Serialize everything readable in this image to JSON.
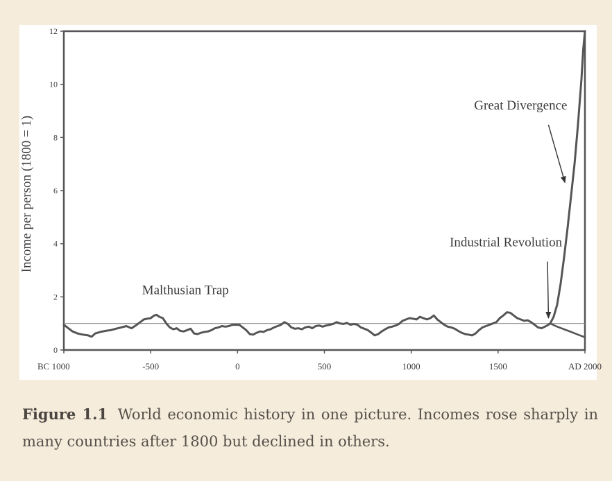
{
  "chart_data": {
    "type": "line",
    "title": "",
    "xlabel": "",
    "ylabel": "Income per person (1800 = 1)",
    "xlim": [
      -1000,
      2000
    ],
    "ylim": [
      0,
      12
    ],
    "x_ticks": [
      -1000,
      -500,
      0,
      500,
      1000,
      1500,
      2000
    ],
    "x_tick_labels": [
      "BC 1000",
      "-500",
      "0",
      "500",
      "1000",
      "1500",
      "AD 2000"
    ],
    "y_ticks": [
      0,
      2,
      4,
      6,
      8,
      10,
      12
    ],
    "y_tick_labels": [
      "0",
      "2",
      "4",
      "6",
      "8",
      "10",
      "12"
    ],
    "grid": false,
    "reference_line": {
      "y": 1
    },
    "series": [
      {
        "values_xy": [
          [
            -1000,
            0.95
          ],
          [
            -980,
            0.85
          ],
          [
            -950,
            0.7
          ],
          [
            -920,
            0.62
          ],
          [
            -890,
            0.58
          ],
          [
            -860,
            0.55
          ],
          [
            -840,
            0.5
          ],
          [
            -820,
            0.62
          ],
          [
            -790,
            0.68
          ],
          [
            -760,
            0.72
          ],
          [
            -730,
            0.75
          ],
          [
            -700,
            0.8
          ],
          [
            -670,
            0.85
          ],
          [
            -640,
            0.9
          ],
          [
            -610,
            0.82
          ],
          [
            -580,
            0.95
          ],
          [
            -560,
            1.05
          ],
          [
            -540,
            1.15
          ],
          [
            -520,
            1.18
          ],
          [
            -500,
            1.2
          ],
          [
            -480,
            1.3
          ],
          [
            -465,
            1.32
          ],
          [
            -450,
            1.25
          ],
          [
            -430,
            1.2
          ],
          [
            -410,
            1.0
          ],
          [
            -390,
            0.85
          ],
          [
            -370,
            0.78
          ],
          [
            -350,
            0.82
          ],
          [
            -330,
            0.72
          ],
          [
            -310,
            0.7
          ],
          [
            -290,
            0.75
          ],
          [
            -270,
            0.8
          ],
          [
            -250,
            0.62
          ],
          [
            -230,
            0.6
          ],
          [
            -210,
            0.65
          ],
          [
            -190,
            0.68
          ],
          [
            -170,
            0.7
          ],
          [
            -150,
            0.75
          ],
          [
            -130,
            0.82
          ],
          [
            -110,
            0.85
          ],
          [
            -90,
            0.9
          ],
          [
            -70,
            0.88
          ],
          [
            -50,
            0.9
          ],
          [
            -30,
            0.95
          ],
          [
            -10,
            0.95
          ],
          [
            10,
            0.95
          ],
          [
            30,
            0.85
          ],
          [
            50,
            0.75
          ],
          [
            70,
            0.6
          ],
          [
            90,
            0.58
          ],
          [
            110,
            0.65
          ],
          [
            130,
            0.7
          ],
          [
            150,
            0.68
          ],
          [
            170,
            0.75
          ],
          [
            190,
            0.78
          ],
          [
            210,
            0.85
          ],
          [
            230,
            0.9
          ],
          [
            250,
            0.95
          ],
          [
            270,
            1.05
          ],
          [
            290,
            0.98
          ],
          [
            310,
            0.85
          ],
          [
            330,
            0.8
          ],
          [
            350,
            0.82
          ],
          [
            370,
            0.78
          ],
          [
            390,
            0.85
          ],
          [
            410,
            0.88
          ],
          [
            430,
            0.82
          ],
          [
            450,
            0.9
          ],
          [
            470,
            0.92
          ],
          [
            490,
            0.88
          ],
          [
            510,
            0.92
          ],
          [
            530,
            0.95
          ],
          [
            550,
            0.98
          ],
          [
            570,
            1.05
          ],
          [
            590,
            1.0
          ],
          [
            610,
            0.98
          ],
          [
            630,
            1.02
          ],
          [
            650,
            0.95
          ],
          [
            670,
            0.98
          ],
          [
            690,
            0.95
          ],
          [
            710,
            0.85
          ],
          [
            730,
            0.8
          ],
          [
            750,
            0.75
          ],
          [
            770,
            0.65
          ],
          [
            790,
            0.55
          ],
          [
            810,
            0.6
          ],
          [
            830,
            0.7
          ],
          [
            850,
            0.78
          ],
          [
            870,
            0.85
          ],
          [
            890,
            0.88
          ],
          [
            910,
            0.92
          ],
          [
            930,
            0.98
          ],
          [
            950,
            1.1
          ],
          [
            970,
            1.15
          ],
          [
            990,
            1.2
          ],
          [
            1010,
            1.18
          ],
          [
            1030,
            1.15
          ],
          [
            1050,
            1.25
          ],
          [
            1070,
            1.2
          ],
          [
            1090,
            1.15
          ],
          [
            1110,
            1.2
          ],
          [
            1130,
            1.3
          ],
          [
            1150,
            1.15
          ],
          [
            1170,
            1.05
          ],
          [
            1190,
            0.95
          ],
          [
            1210,
            0.88
          ],
          [
            1230,
            0.85
          ],
          [
            1250,
            0.8
          ],
          [
            1270,
            0.72
          ],
          [
            1290,
            0.65
          ],
          [
            1310,
            0.6
          ],
          [
            1330,
            0.58
          ],
          [
            1350,
            0.55
          ],
          [
            1370,
            0.62
          ],
          [
            1390,
            0.75
          ],
          [
            1410,
            0.85
          ],
          [
            1430,
            0.9
          ],
          [
            1450,
            0.95
          ],
          [
            1470,
            1.0
          ],
          [
            1490,
            1.05
          ],
          [
            1510,
            1.2
          ],
          [
            1530,
            1.3
          ],
          [
            1550,
            1.42
          ],
          [
            1570,
            1.4
          ],
          [
            1590,
            1.3
          ],
          [
            1610,
            1.2
          ],
          [
            1630,
            1.15
          ],
          [
            1650,
            1.1
          ],
          [
            1670,
            1.12
          ],
          [
            1690,
            1.05
          ],
          [
            1710,
            0.95
          ],
          [
            1730,
            0.85
          ],
          [
            1750,
            0.82
          ],
          [
            1770,
            0.88
          ],
          [
            1790,
            0.95
          ],
          [
            1800,
            1.0
          ],
          [
            1820,
            1.25
          ],
          [
            1840,
            1.7
          ],
          [
            1860,
            2.5
          ],
          [
            1880,
            3.5
          ],
          [
            1900,
            4.6
          ],
          [
            1920,
            5.8
          ],
          [
            1940,
            7.0
          ],
          [
            1960,
            8.5
          ],
          [
            1980,
            10.2
          ],
          [
            1990,
            11.3
          ],
          [
            2000,
            12
          ]
        ]
      },
      {
        "values_xy": [
          [
            1800,
            1.0
          ],
          [
            1840,
            0.88
          ],
          [
            1880,
            0.78
          ],
          [
            1920,
            0.68
          ],
          [
            1960,
            0.58
          ],
          [
            2000,
            0.48
          ]
        ]
      }
    ],
    "annotations": [
      {
        "text": "Malthusian Trap",
        "x": -300,
        "y": 2.1
      },
      {
        "text": "Industrial Revolution",
        "x": 1545,
        "y": 3.9,
        "arrow_to": [
          1790,
          1.2
        ]
      },
      {
        "text": "Great Divergence",
        "x": 1630,
        "y": 9.05,
        "arrow_to": [
          1885,
          6.3
        ]
      }
    ]
  },
  "caption": {
    "label": "Figure 1.1",
    "text": "World economic history in one picture. Incomes rose sharply in many countries after 1800 but declined in others."
  },
  "colors": {
    "background": "#f6ecdc",
    "plot_area": "#ffffff",
    "line": "#555555",
    "reference_line": "#888888",
    "text": "#3c3c3c"
  }
}
